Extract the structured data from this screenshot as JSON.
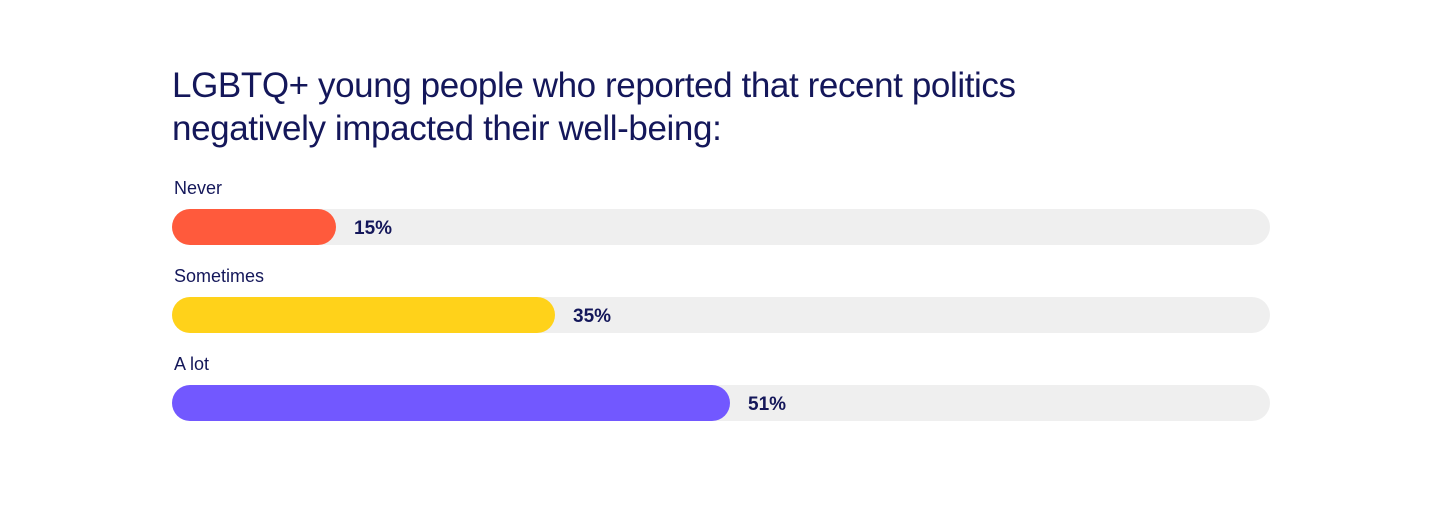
{
  "chart_data": {
    "type": "bar",
    "orientation": "horizontal",
    "title": "LGBTQ+ young people who reported that recent politics negatively impacted their well-being:",
    "categories": [
      "Never",
      "Sometimes",
      "A lot"
    ],
    "values": [
      15,
      35,
      51
    ],
    "value_labels": [
      "15%",
      "35%",
      "51%"
    ],
    "colors": [
      "#ff5a3c",
      "#ffd21a",
      "#7258ff"
    ],
    "track_color": "#efefef",
    "xlim": [
      0,
      100
    ],
    "grid": false,
    "legend": "none"
  }
}
